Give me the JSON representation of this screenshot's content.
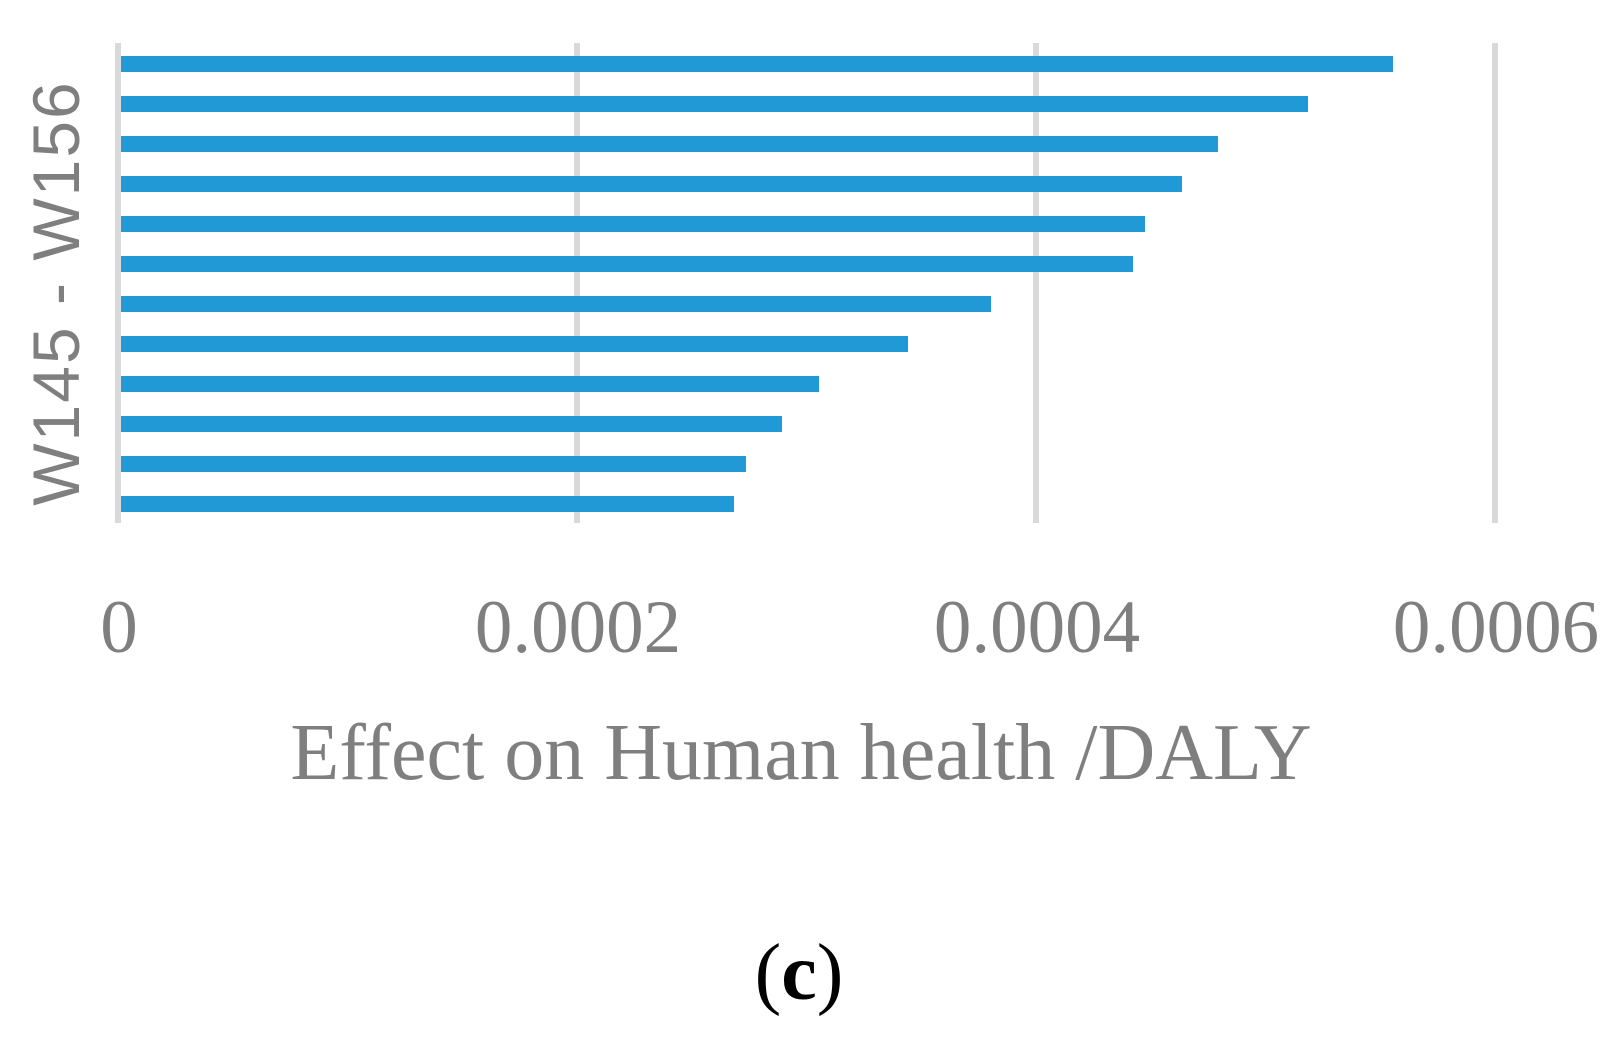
{
  "chart_data": {
    "type": "bar",
    "orientation": "horizontal",
    "values": [
      0.000555,
      0.000518,
      0.000479,
      0.000463,
      0.000447,
      0.000442,
      0.00038,
      0.000344,
      0.000305,
      0.000289,
      0.000273,
      0.000268
    ],
    "xlabel": "Effect on Human health /DALY",
    "ylabel": "W145 - W156",
    "x_ticks": [
      0,
      0.0002,
      0.0004,
      0.0006
    ],
    "x_tick_labels": [
      "0",
      "0.0002",
      "0.0004",
      "0.0006"
    ],
    "xlim": [
      0,
      0.0006
    ],
    "grid": "vertical gridlines at x ticks",
    "legend": "none",
    "bar_color": "#2199d6",
    "gridline_color": "#d9d9d9",
    "axis_line_color": "#d9d9d9",
    "text_color": "#7f7f7f"
  },
  "caption": {
    "open": "(",
    "letter": "c",
    "close": ")"
  }
}
